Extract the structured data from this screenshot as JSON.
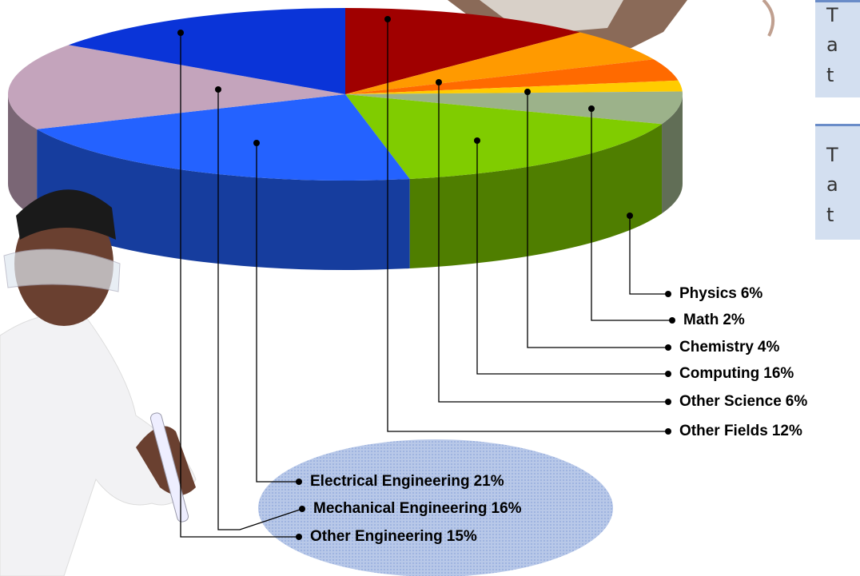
{
  "chart_data": {
    "type": "pie",
    "categories": [
      "Other Fields",
      "Other Science",
      "Chemistry",
      "Math",
      "Physics",
      "Computing",
      "Electrical Engineering",
      "Mechanical Engineering",
      "Other Engineering"
    ],
    "values": [
      12,
      6,
      4,
      2,
      6,
      16,
      21,
      16,
      15
    ],
    "value_labels": [
      "12%",
      "6%",
      "4%",
      "2%",
      "6%",
      "16%",
      "21%",
      "16%",
      "15%"
    ],
    "colors": [
      "#a00000",
      "#ff9a00",
      "#ff6a00",
      "#ffcc00",
      "#9cb28a",
      "#80cc00",
      "#2462ff",
      "#c4a4bc",
      "#0a34d8"
    ],
    "annotations": [
      [
        "T",
        "a",
        "t"
      ],
      [
        "T",
        "a",
        "t"
      ]
    ]
  }
}
